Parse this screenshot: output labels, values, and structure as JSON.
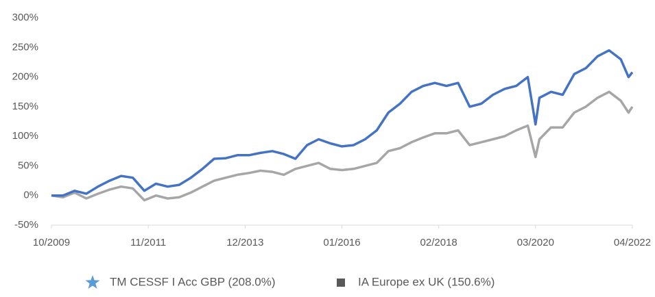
{
  "chart_data": {
    "type": "line",
    "x": [
      "10/2009",
      "01/2010",
      "04/2010",
      "07/2010",
      "10/2010",
      "01/2011",
      "04/2011",
      "07/2011",
      "10/2011",
      "01/2012",
      "04/2012",
      "07/2012",
      "10/2012",
      "01/2013",
      "04/2013",
      "07/2013",
      "10/2013",
      "01/2014",
      "04/2014",
      "07/2014",
      "10/2014",
      "01/2015",
      "04/2015",
      "07/2015",
      "10/2015",
      "01/2016",
      "04/2016",
      "07/2016",
      "10/2016",
      "01/2017",
      "04/2017",
      "07/2017",
      "10/2017",
      "01/2018",
      "04/2018",
      "07/2018",
      "10/2018",
      "01/2019",
      "04/2019",
      "07/2019",
      "10/2019",
      "01/2020",
      "03/2020",
      "04/2020",
      "07/2020",
      "10/2020",
      "01/2021",
      "04/2021",
      "07/2021",
      "10/2021",
      "01/2022",
      "03/2022",
      "04/2022"
    ],
    "series": [
      {
        "name": "TM CESSF I Acc GBP (208.0%)",
        "color": "#4472c4",
        "marker": "star",
        "marker_color": "#5b9bd5",
        "values": [
          0,
          0,
          8,
          3,
          15,
          25,
          33,
          30,
          8,
          20,
          15,
          18,
          30,
          45,
          62,
          63,
          68,
          68,
          72,
          75,
          70,
          62,
          85,
          95,
          88,
          83,
          85,
          95,
          110,
          140,
          155,
          175,
          185,
          190,
          185,
          190,
          150,
          155,
          170,
          180,
          185,
          200,
          120,
          165,
          175,
          170,
          205,
          215,
          235,
          245,
          230,
          200,
          208
        ]
      },
      {
        "name": "IA Europe ex UK (150.6%)",
        "color": "#a6a6a6",
        "marker": "square",
        "marker_color": "#595959",
        "values": [
          0,
          -3,
          5,
          -5,
          3,
          10,
          15,
          12,
          -8,
          0,
          -5,
          -3,
          5,
          15,
          25,
          30,
          35,
          38,
          42,
          40,
          35,
          45,
          50,
          55,
          45,
          43,
          45,
          50,
          55,
          75,
          80,
          90,
          98,
          105,
          105,
          110,
          85,
          90,
          95,
          100,
          110,
          118,
          65,
          95,
          115,
          115,
          140,
          150,
          165,
          175,
          160,
          140,
          150
        ]
      }
    ],
    "xlim": [
      "10/2009",
      "04/2022"
    ],
    "xticks": [
      "10/2009",
      "11/2011",
      "12/2013",
      "01/2016",
      "02/2018",
      "03/2020",
      "04/2022"
    ],
    "ylim": [
      -50,
      300
    ],
    "yticks": [
      {
        "value": -50,
        "label": "-50%"
      },
      {
        "value": 0,
        "label": "0%"
      },
      {
        "value": 50,
        "label": "50%"
      },
      {
        "value": 100,
        "label": "100%"
      },
      {
        "value": 150,
        "label": "150%"
      },
      {
        "value": 200,
        "label": "200%"
      },
      {
        "value": 250,
        "label": "250%"
      },
      {
        "value": 300,
        "label": "300%"
      }
    ],
    "grid": false
  }
}
